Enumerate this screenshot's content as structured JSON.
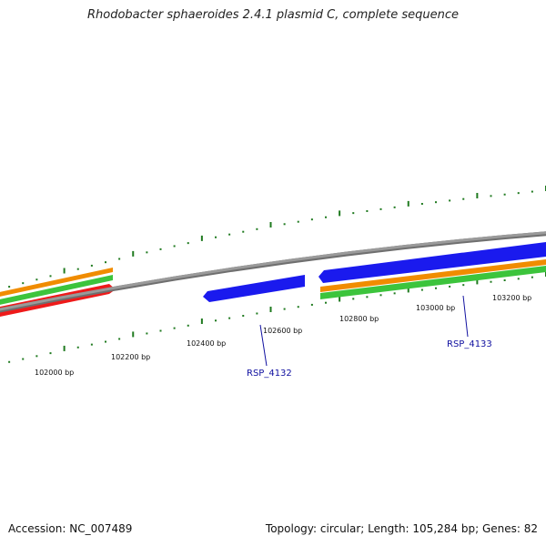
{
  "title": "Rhodobacter sphaeroides 2.4.1 plasmid C, complete sequence",
  "footer": {
    "accession": "Accession: NC_007489",
    "summary": "Topology: circular; Length: 105,284 bp; Genes: 82"
  },
  "colors": {
    "backbone": "#8a8a8a",
    "tick": "#1f7a1f",
    "forward_gene": "#1a1aee",
    "reverse_gene": "#ee1a1a",
    "orange_track": "#f08c00",
    "green_track": "#3cc43c",
    "label_text": "#1010a0"
  },
  "scale": {
    "unit": "bp",
    "labels": [
      "102000 bp",
      "102200 bp",
      "102400 bp",
      "102600 bp",
      "102800 bp",
      "103000 bp",
      "103200 bp"
    ]
  },
  "genes": [
    {
      "name": "RSP_4132",
      "strand": "forward"
    },
    {
      "name": "RSP_4133",
      "strand": "forward"
    }
  ],
  "icons": [
    "plasmid-backbone",
    "gene-arrow"
  ]
}
